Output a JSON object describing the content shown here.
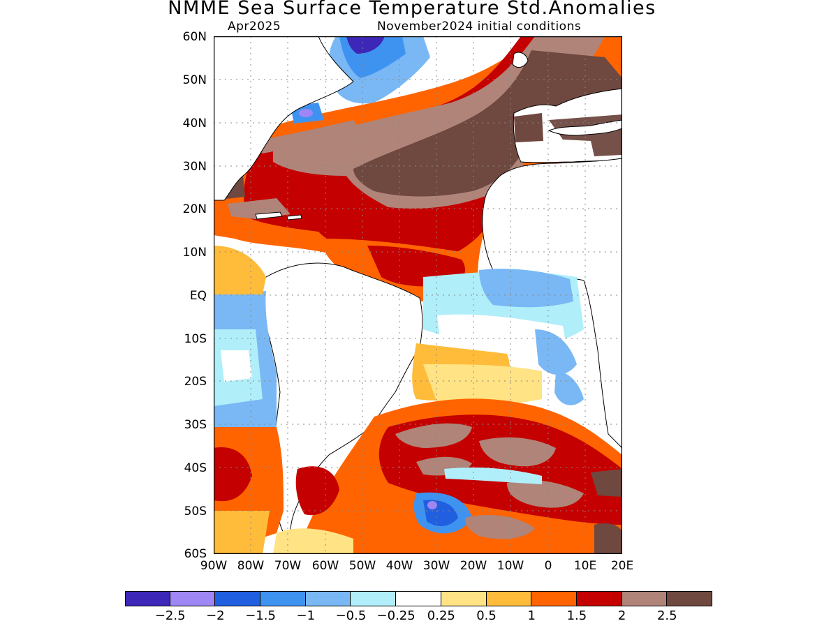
{
  "title": "NMME Sea Surface Temperature Std.Anomalies",
  "subtitle_left": "Apr2025",
  "subtitle_right": "November2024 initial conditions",
  "map": {
    "region": "Atlantic Ocean, 90W-20E, 60S-60N",
    "lat_range": [
      -60,
      60
    ],
    "lon_range": [
      -90,
      20
    ],
    "lat_labels": [
      "60N",
      "50N",
      "40N",
      "30N",
      "20N",
      "10N",
      "EQ",
      "10S",
      "20S",
      "30S",
      "40S",
      "50S",
      "60S"
    ],
    "lon_labels": [
      "90W",
      "80W",
      "70W",
      "60W",
      "50W",
      "40W",
      "30W",
      "20W",
      "10W",
      "0",
      "10E",
      "20E"
    ],
    "grid": "dotted, every 10 degrees",
    "land_color": "#ffffff"
  },
  "colorbar": {
    "colors": [
      "#3d27b8",
      "#9e87f5",
      "#1f5fe0",
      "#3f93f0",
      "#79b8f5",
      "#b0effa",
      "#ffffff",
      "#ffe384",
      "#ffbc3a",
      "#ff6400",
      "#c40000",
      "#b08479",
      "#6f4840"
    ],
    "labels": [
      "−2.5",
      "−2",
      "−1.5",
      "−1",
      "−0.5",
      "−0.25",
      "0.25",
      "0.5",
      "1",
      "1.5",
      "2",
      "2.5"
    ]
  }
}
